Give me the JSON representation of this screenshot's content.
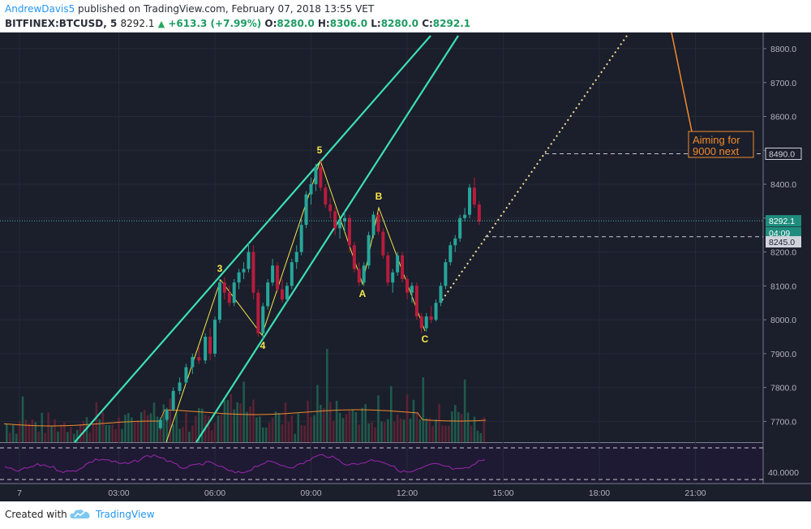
{
  "header": {
    "author": "AndrewDavis5",
    "published_text": "published on TradingView.com, February 07, 2018 13:55 VET",
    "symbol": "BITFINEX:BTCUSD, 5",
    "last": "8292.1",
    "change": "+613.3 (+7.99%)",
    "o_label": "O:",
    "o_value": "8280.0",
    "h_label": "H:",
    "h_value": "8306.0",
    "l_label": "L:",
    "l_value": "8280.0",
    "c_label": "C:",
    "c_value": "8292.1"
  },
  "footer": {
    "created_with": "Created with",
    "brand": "TradingView"
  },
  "colors": {
    "background": "#1b1e2b",
    "up": "#26a69a",
    "down": "#b71c3c",
    "channel": "#3ce0b4",
    "wave": "#f5e94a",
    "annotation": "#f08c2c",
    "rsi": "#9c27b0"
  },
  "chart_data": {
    "type": "candlestick",
    "price_ticks": [
      "8800.0",
      "8700.0",
      "8600.0",
      "8500.0",
      "8400.0",
      "8300.0",
      "8200.0",
      "8100.0",
      "8000.0",
      "7900.0",
      "7800.0",
      "7700.0"
    ],
    "time_ticks": [
      "7",
      "03:00",
      "06:00",
      "09:00",
      "12:00",
      "15:00",
      "18:00",
      "21:00"
    ],
    "price_labels": [
      {
        "text": "8490.0",
        "price": 8490,
        "kind": "level"
      },
      {
        "text": "8292.1",
        "price": 8292.1,
        "kind": "last"
      },
      {
        "text": "04:09",
        "price": 8257,
        "kind": "countdown"
      },
      {
        "text": "8245.0",
        "price": 8230,
        "kind": "level"
      }
    ],
    "rsi_label": "40.0000",
    "rsi_label_value": 40,
    "wave_labels": [
      {
        "text": "3",
        "t": 6.3,
        "p": 8125
      },
      {
        "text": "4",
        "t": 7.45,
        "p": 7925
      },
      {
        "text": "5",
        "t": 9.25,
        "p": 8490
      },
      {
        "text": "A",
        "t": 10.55,
        "p": 8075
      },
      {
        "text": "B",
        "t": 11.05,
        "p": 8350
      },
      {
        "text": "C",
        "t": 12.45,
        "p": 7945
      }
    ],
    "annotation": {
      "text_line1": "Aiming for",
      "text_line2": "9000 next"
    },
    "candles": [
      [
        4.3,
        7680,
        7712,
        7675,
        7705
      ],
      [
        4.5,
        7705,
        7740,
        7700,
        7735
      ],
      [
        4.7,
        7735,
        7800,
        7730,
        7790
      ],
      [
        4.9,
        7790,
        7830,
        7780,
        7815
      ],
      [
        5.1,
        7815,
        7870,
        7810,
        7860
      ],
      [
        5.3,
        7860,
        7900,
        7840,
        7890
      ],
      [
        5.5,
        7890,
        7920,
        7870,
        7880
      ],
      [
        5.7,
        7880,
        7960,
        7870,
        7950
      ],
      [
        5.85,
        7950,
        7975,
        7880,
        7900
      ],
      [
        6.0,
        7900,
        8010,
        7890,
        8000
      ],
      [
        6.15,
        8000,
        8120,
        7990,
        8110
      ],
      [
        6.3,
        8110,
        8125,
        8060,
        8080
      ],
      [
        6.45,
        8080,
        8100,
        8040,
        8050
      ],
      [
        6.6,
        8050,
        8120,
        8040,
        8110
      ],
      [
        6.75,
        8110,
        8150,
        8090,
        8140
      ],
      [
        6.9,
        8140,
        8170,
        8120,
        8150
      ],
      [
        7.05,
        8150,
        8230,
        8140,
        8200
      ],
      [
        7.2,
        8200,
        8220,
        8060,
        8080
      ],
      [
        7.35,
        8080,
        8090,
        7950,
        7960
      ],
      [
        7.5,
        7960,
        8050,
        7940,
        8040
      ],
      [
        7.65,
        8040,
        8120,
        8030,
        8110
      ],
      [
        7.8,
        8110,
        8180,
        8100,
        8160
      ],
      [
        7.95,
        8160,
        8170,
        8080,
        8090
      ],
      [
        8.1,
        8090,
        8120,
        8050,
        8060
      ],
      [
        8.25,
        8060,
        8110,
        8050,
        8100
      ],
      [
        8.4,
        8100,
        8180,
        8090,
        8170
      ],
      [
        8.55,
        8170,
        8220,
        8150,
        8200
      ],
      [
        8.7,
        8200,
        8300,
        8190,
        8280
      ],
      [
        8.85,
        8280,
        8380,
        8270,
        8370
      ],
      [
        9.0,
        8370,
        8420,
        8340,
        8400
      ],
      [
        9.15,
        8400,
        8460,
        8380,
        8450
      ],
      [
        9.3,
        8450,
        8470,
        8380,
        8390
      ],
      [
        9.45,
        8390,
        8400,
        8330,
        8340
      ],
      [
        9.6,
        8340,
        8360,
        8300,
        8320
      ],
      [
        9.75,
        8320,
        8330,
        8250,
        8270
      ],
      [
        9.9,
        8270,
        8300,
        8240,
        8290
      ],
      [
        10.05,
        8290,
        8320,
        8260,
        8300
      ],
      [
        10.2,
        8300,
        8310,
        8200,
        8220
      ],
      [
        10.35,
        8220,
        8230,
        8140,
        8150
      ],
      [
        10.5,
        8150,
        8170,
        8100,
        8110
      ],
      [
        10.65,
        8110,
        8170,
        8100,
        8160
      ],
      [
        10.8,
        8160,
        8260,
        8150,
        8250
      ],
      [
        10.95,
        8250,
        8320,
        8240,
        8310
      ],
      [
        11.1,
        8310,
        8320,
        8250,
        8260
      ],
      [
        11.25,
        8260,
        8270,
        8180,
        8190
      ],
      [
        11.4,
        8190,
        8200,
        8100,
        8110
      ],
      [
        11.55,
        8110,
        8150,
        8080,
        8140
      ],
      [
        11.7,
        8140,
        8200,
        8130,
        8190
      ],
      [
        11.85,
        8190,
        8200,
        8110,
        8120
      ],
      [
        12.0,
        8120,
        8130,
        8060,
        8080
      ],
      [
        12.15,
        8080,
        8110,
        8050,
        8100
      ],
      [
        12.3,
        8100,
        8110,
        8000,
        8010
      ],
      [
        12.45,
        8010,
        8020,
        7960,
        7975
      ],
      [
        12.6,
        7975,
        8020,
        7965,
        8010
      ],
      [
        12.75,
        8010,
        8040,
        7990,
        8000
      ],
      [
        12.9,
        8000,
        8060,
        7995,
        8050
      ],
      [
        13.05,
        8050,
        8110,
        8040,
        8100
      ],
      [
        13.2,
        8100,
        8180,
        8090,
        8170
      ],
      [
        13.35,
        8170,
        8230,
        8160,
        8220
      ],
      [
        13.5,
        8220,
        8250,
        8200,
        8240
      ],
      [
        13.65,
        8240,
        8310,
        8230,
        8300
      ],
      [
        13.8,
        8300,
        8330,
        8290,
        8310
      ],
      [
        13.95,
        8310,
        8400,
        8300,
        8390
      ],
      [
        14.1,
        8390,
        8420,
        8330,
        8340
      ],
      [
        14.25,
        8340,
        8350,
        8280,
        8290
      ]
    ]
  }
}
